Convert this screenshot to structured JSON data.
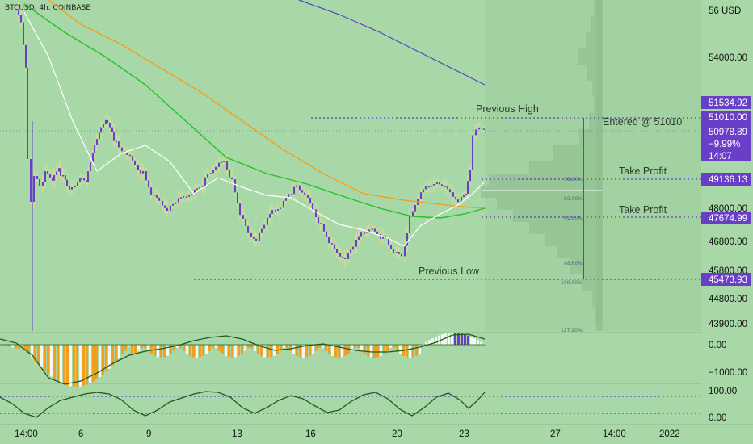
{
  "symbol": "BTCUSD, 4h, COINBASE",
  "colors": {
    "background": "#a8d8a8",
    "candle": "#6a3fc7",
    "candle_wick": "#f2e08a",
    "ma_orange": "#f0a020",
    "ma_green": "#22c42a",
    "ma_white": "#ffffff",
    "ma_purple": "#5a3fc0",
    "badge": "#6a3fc7",
    "dotted": "#5a3fc0",
    "hist_orange": "#f0a020",
    "hist_white": "#f4f8f4",
    "hist_purple": "#6a3fc7",
    "osc_line": "#1f5a1f"
  },
  "price_axis": {
    "top_label": "56 USD",
    "labels": [
      "54000.00",
      "48000.00",
      "46800.00",
      "45800.00",
      "44800.00",
      "43900.00"
    ]
  },
  "time_axis": [
    "14:00",
    "6",
    "9",
    "13",
    "16",
    "20",
    "23",
    "27",
    "14:00",
    "2022"
  ],
  "badges": {
    "previous_high_price": "51534.92",
    "entry_price": "51010.00",
    "last_price": "50978.89",
    "change": "−9.99%",
    "countdown": "14:07",
    "take_profit_1": "49136.13",
    "take_profit_2": "47674.99",
    "previous_low_price": "45473.93"
  },
  "annotations": {
    "previous_high": "Previous High",
    "previous_low": "Previous Low",
    "entered": "Entered @ 51010",
    "take_profit_1": "Take Profit",
    "take_profit_2": "Take Profit"
  },
  "fib_levels": [
    "38.20%",
    "50.00%",
    "61.80%",
    "88.60%",
    "100.00%",
    "127.20%"
  ],
  "macd_axis": [
    "0.00",
    "−1000.00"
  ],
  "osc_axis": [
    "100.00",
    "0.00"
  ]
}
